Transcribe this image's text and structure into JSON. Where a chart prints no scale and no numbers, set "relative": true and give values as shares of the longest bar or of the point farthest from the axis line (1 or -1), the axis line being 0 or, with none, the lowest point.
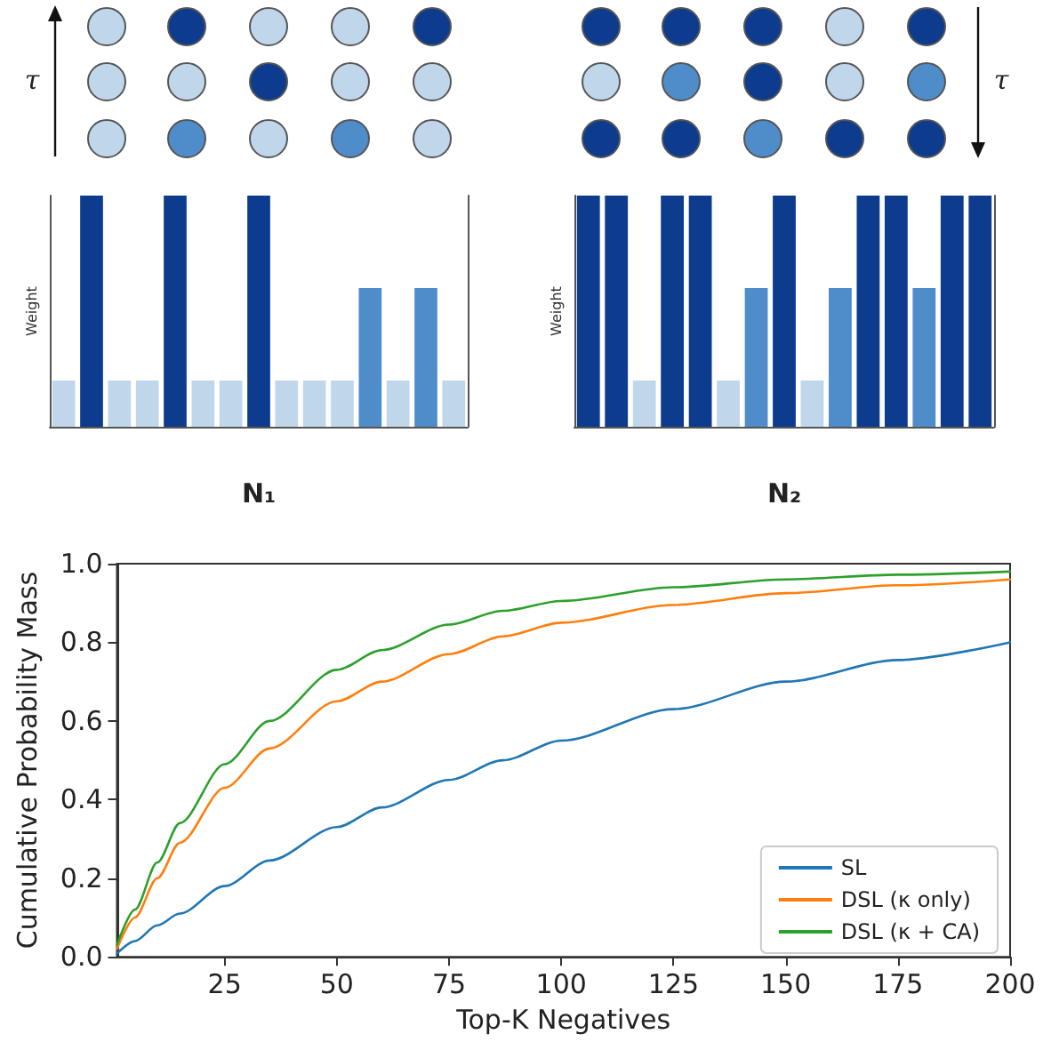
{
  "chart_data": [
    {
      "type": "bar",
      "relative": true,
      "xlabel": "N₁",
      "ylabel": "Weight",
      "annotations": [
        "τ"
      ],
      "grid": false,
      "categories": [
        null,
        null,
        null,
        null,
        null,
        null,
        null,
        null,
        null,
        null,
        null,
        null,
        null,
        null,
        null
      ],
      "values": [
        0.2,
        1,
        0.2,
        0.2,
        1,
        0.2,
        0.2,
        1,
        0.2,
        0.2,
        0.2,
        0.6,
        0.2,
        0.6,
        0.2
      ],
      "colors": [
        "#c0d7eb",
        "#0d3c8f",
        "#c0d7eb",
        "#c0d7eb",
        "#0d3c8f",
        "#c0d7eb",
        "#c0d7eb",
        "#0d3c8f",
        "#c0d7eb",
        "#c0d7eb",
        "#c0d7eb",
        "#4f8cca",
        "#c0d7eb",
        "#4f8cca",
        "#c0d7eb"
      ]
    },
    {
      "type": "bar",
      "relative": true,
      "xlabel": "N₂",
      "ylabel": "Weight",
      "annotations": [
        "τ"
      ],
      "grid": false,
      "categories": [
        null,
        null,
        null,
        null,
        null,
        null,
        null,
        null,
        null,
        null,
        null,
        null,
        null,
        null,
        null
      ],
      "values": [
        1,
        1,
        0.2,
        1,
        1,
        0.2,
        0.6,
        1,
        0.2,
        0.6,
        1,
        1,
        0.6,
        1,
        1
      ],
      "colors": [
        "#0d3c8f",
        "#0d3c8f",
        "#c0d7eb",
        "#0d3c8f",
        "#0d3c8f",
        "#c0d7eb",
        "#4f8cca",
        "#0d3c8f",
        "#c0d7eb",
        "#4f8cca",
        "#0d3c8f",
        "#0d3c8f",
        "#4f8cca",
        "#0d3c8f",
        "#0d3c8f"
      ]
    },
    {
      "type": "line",
      "xlabel": "Top-K Negatives",
      "ylabel": "Cumulative Probability Mass",
      "grid": false,
      "legend": "bottom right",
      "marker": "none",
      "line_style": "solid",
      "x": [
        1,
        5,
        10,
        15,
        25,
        35,
        50,
        60,
        75,
        87,
        100,
        125,
        150,
        175,
        200
      ],
      "xlim": [
        1,
        200
      ],
      "xticks": [
        25,
        50,
        75,
        100,
        125,
        150,
        175,
        200
      ],
      "ylim": [
        0,
        1
      ],
      "yticks": [
        {
          "value": 0,
          "label": "0.0"
        },
        0.2,
        0.4,
        0.6,
        0.8,
        {
          "value": 1,
          "label": "1.0"
        }
      ],
      "series": [
        {
          "name": "SL",
          "color": "#1f77b4",
          "values": [
            0.008,
            0.04,
            0.08,
            0.11,
            0.18,
            0.245,
            0.33,
            0.38,
            0.45,
            0.5,
            0.55,
            0.63,
            0.7,
            0.755,
            0.8
          ]
        },
        {
          "name": "DSL (κ only)",
          "color": "#ff7f0e",
          "values": [
            0.02,
            0.1,
            0.2,
            0.29,
            0.43,
            0.53,
            0.65,
            0.7,
            0.77,
            0.815,
            0.85,
            0.895,
            0.925,
            0.945,
            0.96
          ]
        },
        {
          "name": "DSL (κ + CA)",
          "color": "#2ca02c",
          "values": [
            0.03,
            0.12,
            0.24,
            0.34,
            0.49,
            0.6,
            0.73,
            0.78,
            0.845,
            0.88,
            0.905,
            0.94,
            0.96,
            0.972,
            0.98
          ]
        }
      ]
    }
  ]
}
